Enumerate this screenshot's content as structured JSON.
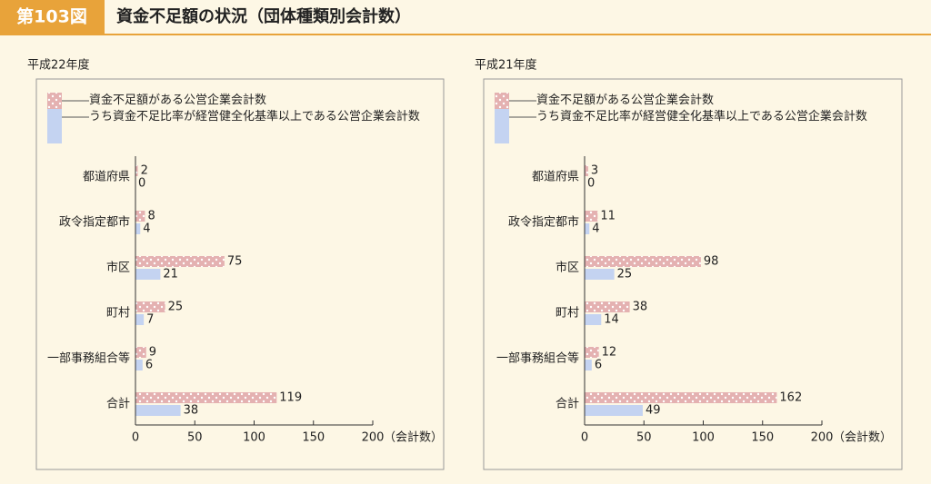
{
  "header": {
    "figure_label": "第103図",
    "title": "資金不足額の状況（団体種類別会計数）"
  },
  "chart_data": [
    {
      "type": "bar",
      "subtitle": "平成22年度",
      "categories": [
        "都道府県",
        "政令指定都市",
        "市区",
        "町村",
        "一部事務組合等",
        "合計"
      ],
      "series": [
        {
          "name": "資金不足額がある公営企業会計数",
          "color": "#e4b1b1",
          "pattern": "dotted",
          "values": [
            2,
            8,
            75,
            25,
            9,
            119
          ]
        },
        {
          "name": "うち資金不足比率が経営健全化基準以上である公営企業会計数",
          "color": "#c4d3f1",
          "values": [
            0,
            4,
            21,
            7,
            6,
            38
          ]
        }
      ],
      "xlim": [
        0,
        200
      ],
      "xticks": [
        0,
        50,
        100,
        150,
        200
      ],
      "x_label": "（会計数）"
    },
    {
      "type": "bar",
      "subtitle": "平成21年度",
      "categories": [
        "都道府県",
        "政令指定都市",
        "市区",
        "町村",
        "一部事務組合等",
        "合計"
      ],
      "series": [
        {
          "name": "資金不足額がある公営企業会計数",
          "color": "#e4b1b1",
          "pattern": "dotted",
          "values": [
            3,
            11,
            98,
            38,
            12,
            162
          ]
        },
        {
          "name": "うち資金不足比率が経営健全化基準以上である公営企業会計数",
          "color": "#c4d3f1",
          "values": [
            0,
            4,
            25,
            14,
            6,
            49
          ]
        }
      ],
      "xlim": [
        0,
        200
      ],
      "xticks": [
        0,
        50,
        100,
        150,
        200
      ],
      "x_label": "（会計数）"
    }
  ]
}
